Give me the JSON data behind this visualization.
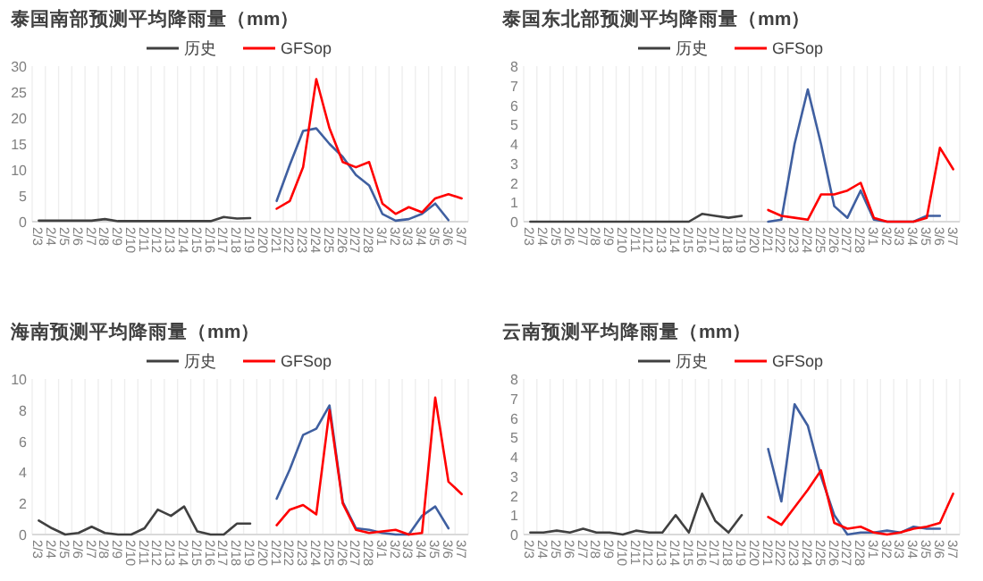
{
  "chart_data": [
    {
      "type": "line",
      "title": "泰国南部预测平均降雨量（mm）",
      "legend": "top",
      "grid": "x",
      "categories": [
        "2/3",
        "2/4",
        "2/5",
        "2/6",
        "2/7",
        "2/8",
        "2/9",
        "2/10",
        "2/11",
        "2/12",
        "2/13",
        "2/14",
        "2/15",
        "2/16",
        "2/17",
        "2/18",
        "2/19",
        "2/20",
        "2/21",
        "2/22",
        "2/23",
        "2/24",
        "2/25",
        "2/26",
        "2/27",
        "2/28",
        "3/1",
        "3/2",
        "3/3",
        "3/4",
        "3/5",
        "3/6",
        "3/7"
      ],
      "ylim": [
        0,
        30
      ],
      "yticks": [
        0,
        5,
        10,
        15,
        20,
        25,
        30
      ],
      "series": [
        {
          "name": "历史",
          "color": "#404040",
          "values": [
            0.2,
            0.2,
            0.2,
            0.2,
            0.2,
            0.5,
            0.1,
            0.1,
            0.1,
            0.1,
            0.1,
            0.1,
            0.1,
            0.1,
            0.9,
            0.6,
            0.7,
            null,
            null,
            null,
            null,
            null,
            null,
            null,
            null,
            null,
            null,
            null,
            null,
            null,
            null,
            null,
            null
          ]
        },
        {
          "color": "#3f5fa0",
          "values": [
            null,
            null,
            null,
            null,
            null,
            null,
            null,
            null,
            null,
            null,
            null,
            null,
            null,
            null,
            null,
            null,
            null,
            null,
            4,
            11,
            17.5,
            18,
            15,
            12.5,
            9,
            7,
            1.5,
            0.2,
            0.5,
            1.5,
            3.5,
            0.3,
            null
          ]
        },
        {
          "name": "GFSop",
          "color": "#ff0000",
          "values": [
            null,
            null,
            null,
            null,
            null,
            null,
            null,
            null,
            null,
            null,
            null,
            null,
            null,
            null,
            null,
            null,
            null,
            null,
            2.5,
            4,
            10.5,
            27.5,
            18,
            11.5,
            10.5,
            11.5,
            3.5,
            1.5,
            2.8,
            1.8,
            4.5,
            5.3,
            4.5
          ]
        }
      ]
    },
    {
      "type": "line",
      "title": "泰国东北部预测平均降雨量（mm）",
      "legend": "top",
      "grid": "x",
      "categories": [
        "2/3",
        "2/4",
        "2/5",
        "2/6",
        "2/7",
        "2/8",
        "2/9",
        "2/10",
        "2/11",
        "2/12",
        "2/13",
        "2/14",
        "2/15",
        "2/16",
        "2/17",
        "2/18",
        "2/19",
        "2/20",
        "2/21",
        "2/22",
        "2/23",
        "2/24",
        "2/25",
        "2/26",
        "2/27",
        "2/28",
        "3/1",
        "3/2",
        "3/3",
        "3/4",
        "3/5",
        "3/6",
        "3/7"
      ],
      "ylim": [
        0,
        8
      ],
      "yticks": [
        0,
        1,
        2,
        3,
        4,
        5,
        6,
        7,
        8
      ],
      "series": [
        {
          "name": "历史",
          "color": "#404040",
          "values": [
            0,
            0,
            0,
            0,
            0,
            0,
            0,
            0,
            0,
            0,
            0,
            0,
            0,
            0.4,
            0.3,
            0.2,
            0.3,
            null,
            null,
            null,
            null,
            null,
            null,
            null,
            null,
            null,
            null,
            null,
            null,
            null,
            null,
            null,
            null
          ]
        },
        {
          "color": "#3f5fa0",
          "values": [
            null,
            null,
            null,
            null,
            null,
            null,
            null,
            null,
            null,
            null,
            null,
            null,
            null,
            null,
            null,
            null,
            null,
            null,
            0,
            0.1,
            4,
            6.8,
            4,
            0.8,
            0.2,
            1.6,
            0.1,
            0,
            0,
            0,
            0.3,
            0.3,
            null
          ]
        },
        {
          "name": "GFSop",
          "color": "#ff0000",
          "values": [
            null,
            null,
            null,
            null,
            null,
            null,
            null,
            null,
            null,
            null,
            null,
            null,
            null,
            null,
            null,
            null,
            null,
            null,
            0.6,
            0.3,
            0.2,
            0.1,
            1.4,
            1.4,
            1.6,
            2.0,
            0.2,
            0,
            0,
            0,
            0.2,
            3.8,
            2.7
          ]
        }
      ]
    },
    {
      "type": "line",
      "title": "海南预测平均降雨量（mm）",
      "legend": "top",
      "grid": "x",
      "categories": [
        "2/3",
        "2/4",
        "2/5",
        "2/6",
        "2/7",
        "2/8",
        "2/9",
        "2/10",
        "2/11",
        "2/12",
        "2/13",
        "2/14",
        "2/15",
        "2/16",
        "2/17",
        "2/18",
        "2/19",
        "2/20",
        "2/21",
        "2/22",
        "2/23",
        "2/24",
        "2/25",
        "2/26",
        "2/27",
        "2/28",
        "3/1",
        "3/2",
        "3/3",
        "3/4",
        "3/5",
        "3/6",
        "3/7"
      ],
      "ylim": [
        0,
        10
      ],
      "yticks": [
        0,
        2,
        4,
        6,
        8,
        10
      ],
      "series": [
        {
          "name": "历史",
          "color": "#404040",
          "values": [
            0.9,
            0.4,
            0,
            0.1,
            0.5,
            0.1,
            0,
            0,
            0.4,
            1.6,
            1.2,
            1.8,
            0.2,
            0,
            0,
            0.7,
            0.7,
            null,
            null,
            null,
            null,
            null,
            null,
            null,
            null,
            null,
            null,
            null,
            null,
            null,
            null,
            null,
            null
          ]
        },
        {
          "color": "#3f5fa0",
          "values": [
            null,
            null,
            null,
            null,
            null,
            null,
            null,
            null,
            null,
            null,
            null,
            null,
            null,
            null,
            null,
            null,
            null,
            null,
            2.3,
            4.2,
            6.4,
            6.8,
            8.3,
            2.1,
            0.4,
            0.3,
            0.1,
            0,
            0,
            1.2,
            1.8,
            0.4,
            null
          ]
        },
        {
          "name": "GFSop",
          "color": "#ff0000",
          "values": [
            null,
            null,
            null,
            null,
            null,
            null,
            null,
            null,
            null,
            null,
            null,
            null,
            null,
            null,
            null,
            null,
            null,
            null,
            0.6,
            1.6,
            1.9,
            1.3,
            8.0,
            2.0,
            0.3,
            0.1,
            0.2,
            0.3,
            0,
            0.1,
            8.8,
            3.4,
            2.6
          ]
        }
      ]
    },
    {
      "type": "line",
      "title": "云南预测平均降雨量（mm）",
      "legend": "top",
      "grid": "x",
      "categories": [
        "2/3",
        "2/4",
        "2/5",
        "2/6",
        "2/7",
        "2/8",
        "2/9",
        "2/10",
        "2/11",
        "2/12",
        "2/13",
        "2/14",
        "2/15",
        "2/16",
        "2/17",
        "2/18",
        "2/19",
        "2/20",
        "2/21",
        "2/22",
        "2/23",
        "2/24",
        "2/25",
        "2/26",
        "2/27",
        "2/28",
        "3/1",
        "3/2",
        "3/3",
        "3/4",
        "3/5",
        "3/6",
        "3/7"
      ],
      "ylim": [
        0,
        8
      ],
      "yticks": [
        0,
        1,
        2,
        3,
        4,
        5,
        6,
        7,
        8
      ],
      "series": [
        {
          "name": "历史",
          "color": "#404040",
          "values": [
            0.1,
            0.1,
            0.2,
            0.1,
            0.3,
            0.1,
            0.1,
            0,
            0.2,
            0.1,
            0.1,
            1.0,
            0.1,
            2.1,
            0.7,
            0.1,
            1.0,
            null,
            null,
            null,
            null,
            null,
            null,
            null,
            null,
            null,
            null,
            null,
            null,
            null,
            null,
            null,
            null
          ]
        },
        {
          "color": "#3f5fa0",
          "values": [
            null,
            null,
            null,
            null,
            null,
            null,
            null,
            null,
            null,
            null,
            null,
            null,
            null,
            null,
            null,
            null,
            null,
            null,
            4.4,
            1.7,
            6.7,
            5.6,
            3.0,
            1.0,
            0,
            0.1,
            0.1,
            0.2,
            0.1,
            0.4,
            0.3,
            0.3,
            null
          ]
        },
        {
          "name": "GFSop",
          "color": "#ff0000",
          "values": [
            null,
            null,
            null,
            null,
            null,
            null,
            null,
            null,
            null,
            null,
            null,
            null,
            null,
            null,
            null,
            null,
            null,
            null,
            0.9,
            0.5,
            1.4,
            2.3,
            3.3,
            0.6,
            0.3,
            0.4,
            0.1,
            0,
            0.1,
            0.3,
            0.4,
            0.6,
            2.1
          ]
        }
      ]
    }
  ]
}
